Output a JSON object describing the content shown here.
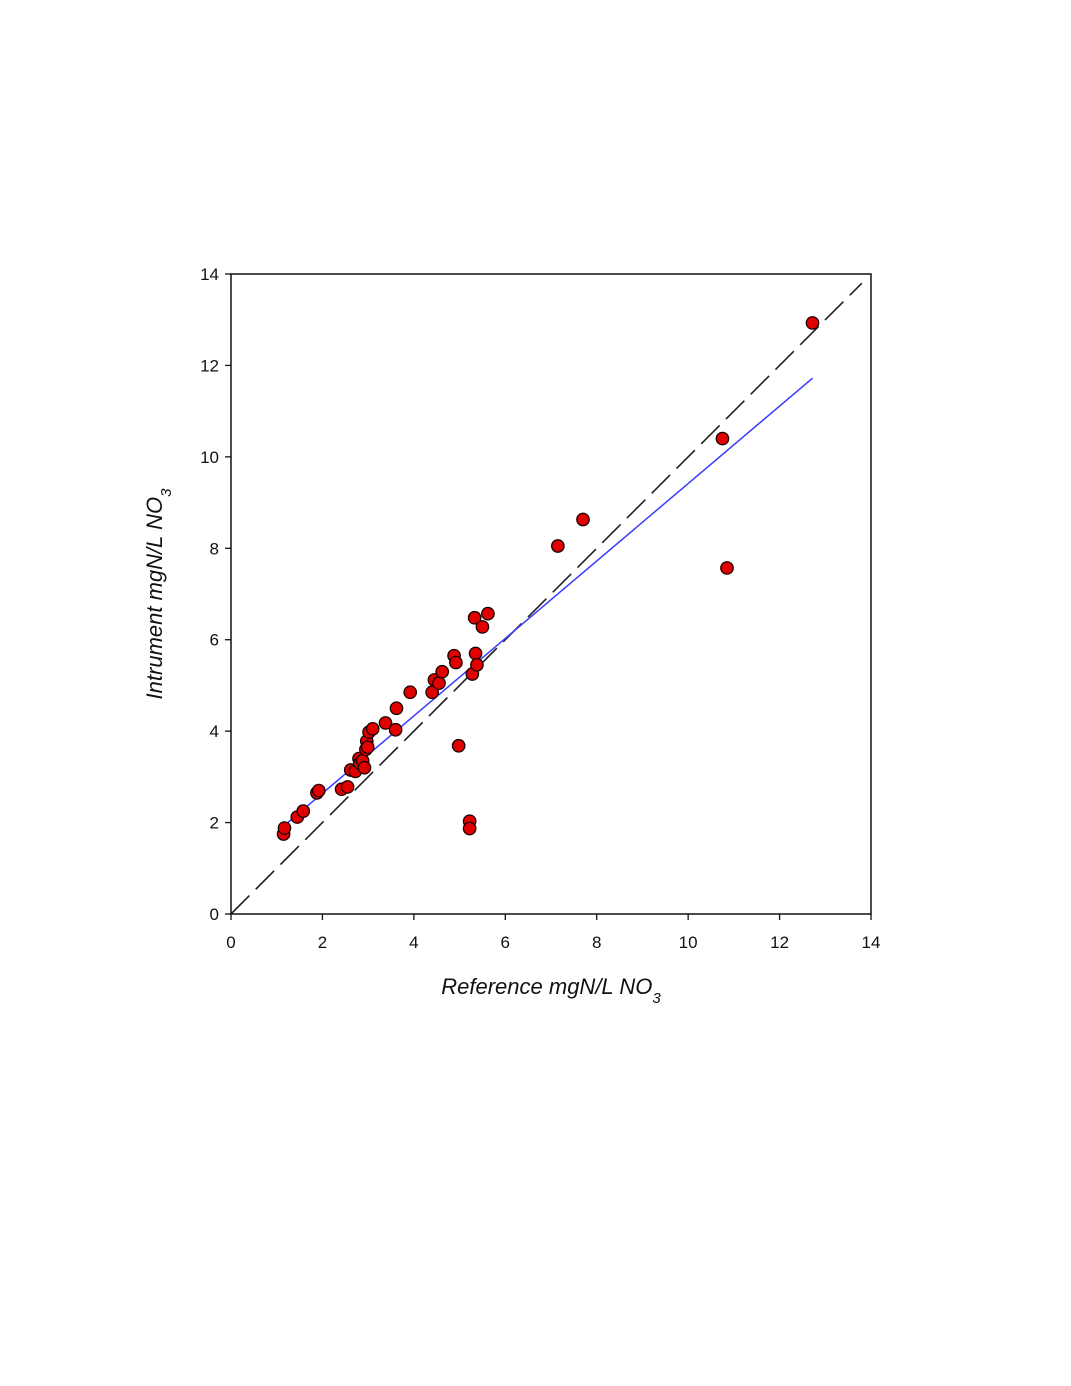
{
  "chart_data": {
    "type": "scatter",
    "xlabel": "Reference mgN/L NO",
    "xlabel_sub": "3",
    "ylabel": "Intrument mgN/L NO",
    "ylabel_sub": "3",
    "xlim": [
      0,
      14
    ],
    "ylim": [
      0,
      14
    ],
    "xticks": [
      "0",
      "2",
      "4",
      "6",
      "8",
      "10",
      "12",
      "14"
    ],
    "yticks": [
      "0",
      "2",
      "4",
      "6",
      "8",
      "10",
      "12",
      "14"
    ],
    "grid": false,
    "marker_color": "#e00000",
    "marker_edge_color": "#1a0000",
    "fit_line_color": "#3b3bff",
    "reference_line_color": "#222222",
    "points": [
      [
        1.15,
        1.75
      ],
      [
        1.17,
        1.88
      ],
      [
        1.45,
        2.12
      ],
      [
        1.58,
        2.25
      ],
      [
        1.88,
        2.65
      ],
      [
        1.92,
        2.7
      ],
      [
        2.42,
        2.73
      ],
      [
        2.55,
        2.78
      ],
      [
        2.62,
        3.15
      ],
      [
        2.72,
        3.12
      ],
      [
        2.8,
        3.4
      ],
      [
        2.82,
        3.3
      ],
      [
        2.88,
        3.35
      ],
      [
        2.92,
        3.2
      ],
      [
        2.95,
        3.6
      ],
      [
        2.97,
        3.78
      ],
      [
        2.99,
        3.65
      ],
      [
        3.02,
        3.98
      ],
      [
        3.1,
        4.05
      ],
      [
        3.38,
        4.18
      ],
      [
        3.6,
        4.03
      ],
      [
        3.62,
        4.5
      ],
      [
        3.92,
        4.85
      ],
      [
        4.4,
        4.85
      ],
      [
        4.45,
        5.12
      ],
      [
        4.55,
        5.05
      ],
      [
        4.62,
        5.3
      ],
      [
        4.88,
        5.65
      ],
      [
        4.92,
        5.5
      ],
      [
        4.98,
        3.68
      ],
      [
        5.22,
        2.03
      ],
      [
        5.22,
        1.87
      ],
      [
        5.28,
        5.25
      ],
      [
        5.33,
        6.48
      ],
      [
        5.35,
        5.7
      ],
      [
        5.38,
        5.45
      ],
      [
        5.5,
        6.28
      ],
      [
        5.62,
        6.57
      ],
      [
        7.15,
        8.05
      ],
      [
        7.7,
        8.63
      ],
      [
        10.75,
        10.4
      ],
      [
        10.85,
        7.57
      ],
      [
        12.72,
        12.93
      ]
    ],
    "fit_line": {
      "x": [
        1.15,
        12.72
      ],
      "y": [
        1.92,
        11.72
      ]
    },
    "identity_line": {
      "x": [
        0,
        13.8
      ],
      "y": [
        0,
        13.8
      ]
    }
  }
}
